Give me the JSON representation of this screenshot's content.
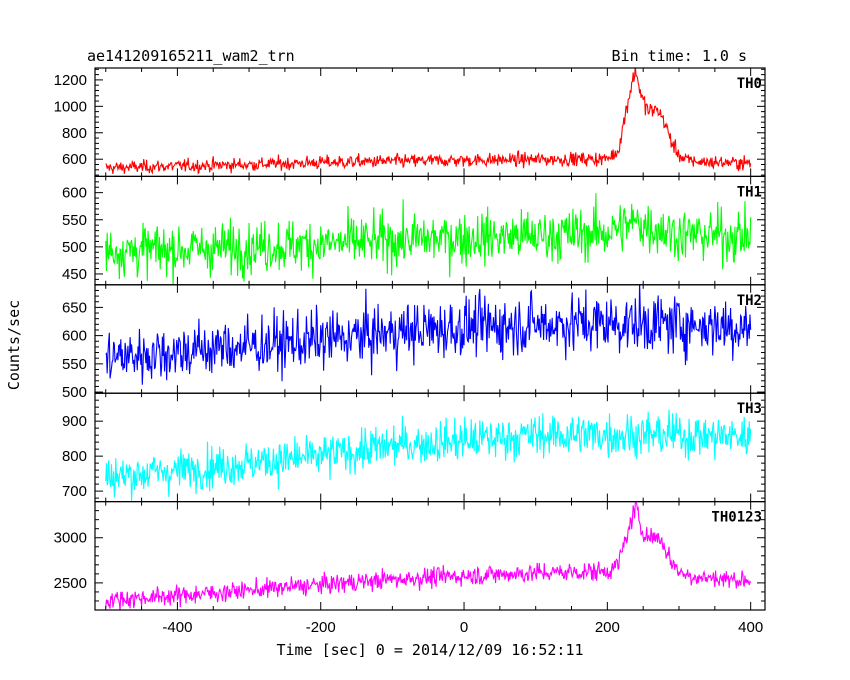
{
  "header": {
    "title": "ae141209165211_wam2_trn",
    "bin_time": "Bin time: 1.0 s"
  },
  "chart_data": {
    "type": "line",
    "title": "ae141209165211_wam2_trn",
    "subtitle": "Bin time: 1.0 s",
    "xlabel": "Time [sec] 0 = 2014/12/09 16:52:11",
    "ylabel": "Counts/sec",
    "xlim": [
      -515,
      420
    ],
    "x_ticks": [
      -400,
      -200,
      0,
      200,
      400
    ],
    "grid": false,
    "series": [
      {
        "name": "TH0",
        "color": "#ff0000",
        "ylim": [
          470,
          1290
        ],
        "y_ticks": [
          600,
          800,
          1000,
          1200
        ],
        "x": [
          -500,
          -400,
          -300,
          -200,
          -100,
          0,
          100,
          200,
          215,
          228,
          235,
          240,
          248,
          258,
          270,
          280,
          290,
          305,
          330,
          400
        ],
        "y": [
          535,
          548,
          560,
          575,
          585,
          592,
          598,
          603,
          660,
          1020,
          1200,
          1270,
          1060,
          960,
          980,
          880,
          720,
          600,
          580,
          570
        ]
      },
      {
        "name": "TH1",
        "color": "#00ff00",
        "ylim": [
          430,
          630
        ],
        "y_ticks": [
          450,
          500,
          550,
          600
        ],
        "x": [
          -500,
          -400,
          -300,
          -200,
          -100,
          0,
          100,
          200,
          240,
          300,
          400
        ],
        "y": [
          493,
          495,
          500,
          505,
          512,
          517,
          520,
          527,
          545,
          523,
          520
        ]
      },
      {
        "name": "TH2",
        "color": "#0000ff",
        "ylim": [
          498,
          690
        ],
        "y_ticks": [
          500,
          550,
          600,
          650
        ],
        "x": [
          -500,
          -400,
          -300,
          -200,
          -100,
          0,
          100,
          200,
          300,
          400
        ],
        "y": [
          560,
          572,
          582,
          592,
          605,
          615,
          620,
          622,
          620,
          615
        ]
      },
      {
        "name": "TH3",
        "color": "#00ffff",
        "ylim": [
          670,
          980
        ],
        "y_ticks": [
          700,
          800,
          900
        ],
        "x": [
          -500,
          -400,
          -300,
          -200,
          -100,
          0,
          100,
          200,
          300,
          400
        ],
        "y": [
          740,
          760,
          780,
          800,
          830,
          845,
          860,
          862,
          860,
          855
        ]
      },
      {
        "name": "TH0123",
        "color": "#ff00ff",
        "ylim": [
          2200,
          3400
        ],
        "y_ticks": [
          2500,
          3000
        ],
        "x": [
          -500,
          -400,
          -300,
          -200,
          -100,
          0,
          100,
          200,
          215,
          228,
          235,
          240,
          248,
          258,
          270,
          280,
          290,
          305,
          330,
          400
        ],
        "y": [
          2310,
          2360,
          2420,
          2480,
          2540,
          2580,
          2610,
          2630,
          2700,
          3050,
          3230,
          3320,
          3100,
          3000,
          3020,
          2900,
          2720,
          2600,
          2560,
          2530
        ]
      }
    ]
  }
}
